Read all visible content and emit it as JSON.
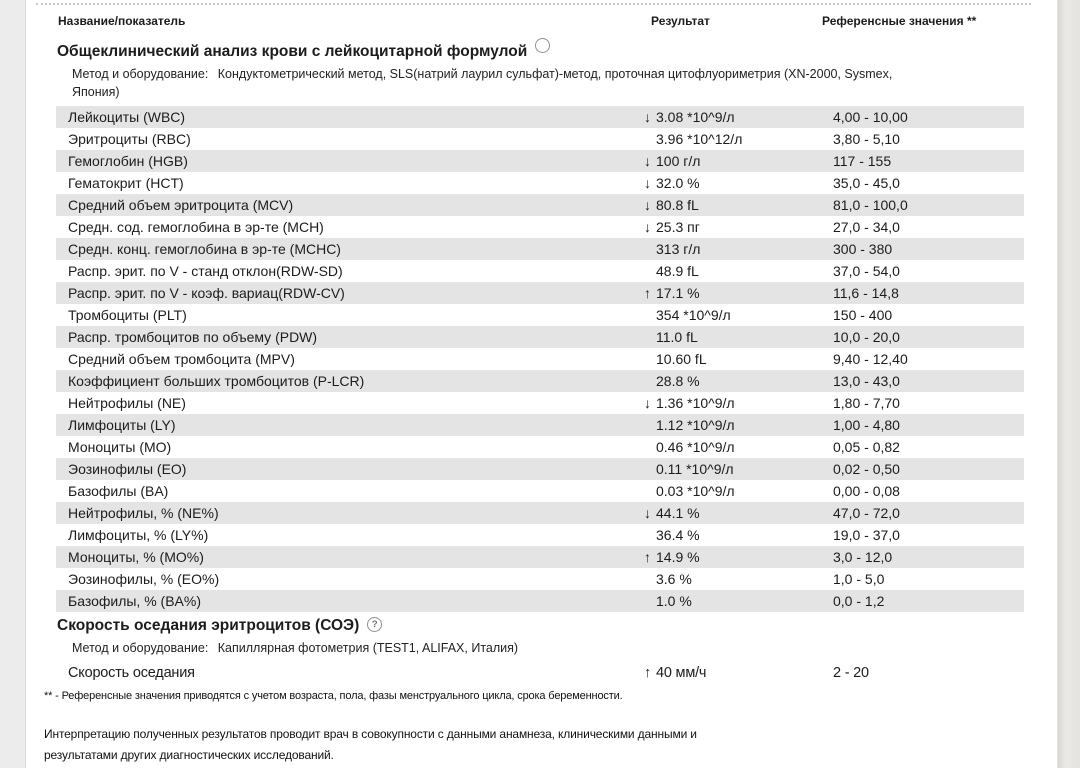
{
  "columns": {
    "name": "Название/показатель",
    "result": "Результат",
    "reference": "Референсные значения **"
  },
  "sections": [
    {
      "title": "Общеклинический анализ крови с лейкоцитарной формулой",
      "method_label": "Метод и оборудование:",
      "method": "Кондуктометрический метод, SLS(натрий лаурил сульфат)-метод, проточная цитофлуориметрия (XN-2000, Sysmex, Япония)",
      "rows": [
        {
          "name": "Лейкоциты (WBC)",
          "flag": "down",
          "result": "3.08 *10^9/л",
          "reference": "4,00 - 10,00"
        },
        {
          "name": "Эритроциты (RBC)",
          "flag": "",
          "result": "3.96 *10^12/л",
          "reference": "3,80 - 5,10"
        },
        {
          "name": "Гемоглобин (HGB)",
          "flag": "down",
          "result": "100 г/л",
          "reference": "117 - 155"
        },
        {
          "name": "Гематокрит (HCT)",
          "flag": "down",
          "result": "32.0 %",
          "reference": "35,0 - 45,0"
        },
        {
          "name": "Средний объем эритроцита (MCV)",
          "flag": "down",
          "result": "80.8 fL",
          "reference": "81,0 - 100,0"
        },
        {
          "name": "Средн. сод. гемоглобина в эр-те (MCH)",
          "flag": "down",
          "result": "25.3 пг",
          "reference": "27,0 - 34,0"
        },
        {
          "name": "Средн. конц. гемоглобина в эр-те (MCHC)",
          "flag": "",
          "result": "313 г/л",
          "reference": "300 - 380"
        },
        {
          "name": "Распр. эрит. по V - станд отклон(RDW-SD)",
          "flag": "",
          "result": "48.9 fL",
          "reference": "37,0 - 54,0"
        },
        {
          "name": "Распр. эрит. по V - коэф. вариац(RDW-CV)",
          "flag": "up",
          "result": "17.1 %",
          "reference": "11,6 - 14,8"
        },
        {
          "name": "Тромбоциты (PLT)",
          "flag": "",
          "result": "354 *10^9/л",
          "reference": "150 - 400"
        },
        {
          "name": "Распр. тромбоцитов по объему (PDW)",
          "flag": "",
          "result": "11.0 fL",
          "reference": "10,0 - 20,0"
        },
        {
          "name": "Средний объем тромбоцита (MPV)",
          "flag": "",
          "result": "10.60 fL",
          "reference": "9,40 - 12,40"
        },
        {
          "name": "Коэффициент больших тромбоцитов (P-LCR)",
          "flag": "",
          "result": "28.8 %",
          "reference": "13,0 - 43,0"
        },
        {
          "name": "Нейтрофилы (NE)",
          "flag": "down",
          "result": "1.36 *10^9/л",
          "reference": "1,80 - 7,70"
        },
        {
          "name": "Лимфоциты (LY)",
          "flag": "",
          "result": "1.12 *10^9/л",
          "reference": "1,00 - 4,80"
        },
        {
          "name": "Моноциты (MO)",
          "flag": "",
          "result": "0.46 *10^9/л",
          "reference": "0,05 - 0,82"
        },
        {
          "name": "Эозинофилы (EO)",
          "flag": "",
          "result": "0.11 *10^9/л",
          "reference": "0,02 - 0,50"
        },
        {
          "name": "Базофилы (BA)",
          "flag": "",
          "result": "0.03 *10^9/л",
          "reference": "0,00 - 0,08"
        },
        {
          "name": "Нейтрофилы, % (NE%)",
          "flag": "down",
          "result": "44.1 %",
          "reference": "47,0 - 72,0"
        },
        {
          "name": "Лимфоциты, % (LY%)",
          "flag": "",
          "result": "36.4 %",
          "reference": "19,0 - 37,0"
        },
        {
          "name": "Моноциты, % (MO%)",
          "flag": "up",
          "result": "14.9 %",
          "reference": "3,0 - 12,0"
        },
        {
          "name": "Эозинофилы, % (EO%)",
          "flag": "",
          "result": "3.6 %",
          "reference": "1,0 - 5,0"
        },
        {
          "name": "Базофилы, % (BA%)",
          "flag": "",
          "result": "1.0 %",
          "reference": "0,0 - 1,2"
        }
      ]
    },
    {
      "title": "Скорость оседания эритроцитов (СОЭ)",
      "help_icon": "?",
      "method_label": "Метод и оборудование:",
      "method": "Капиллярная фотометрия (TEST1, ALIFAX, Италия)",
      "rows": [
        {
          "name": "Скорость оседания",
          "flag": "up",
          "result": "40 мм/ч",
          "reference": "2 - 20"
        }
      ]
    }
  ],
  "footnote": "** - Референсные значения приводятся с учетом возраста, пола, фазы менструального цикла, срока беременности.",
  "interpretation": "Интерпретацию полученных результатов проводит врач в совокупности с данными анамнеза, клиническими данными и результатами других диагностических исследований."
}
